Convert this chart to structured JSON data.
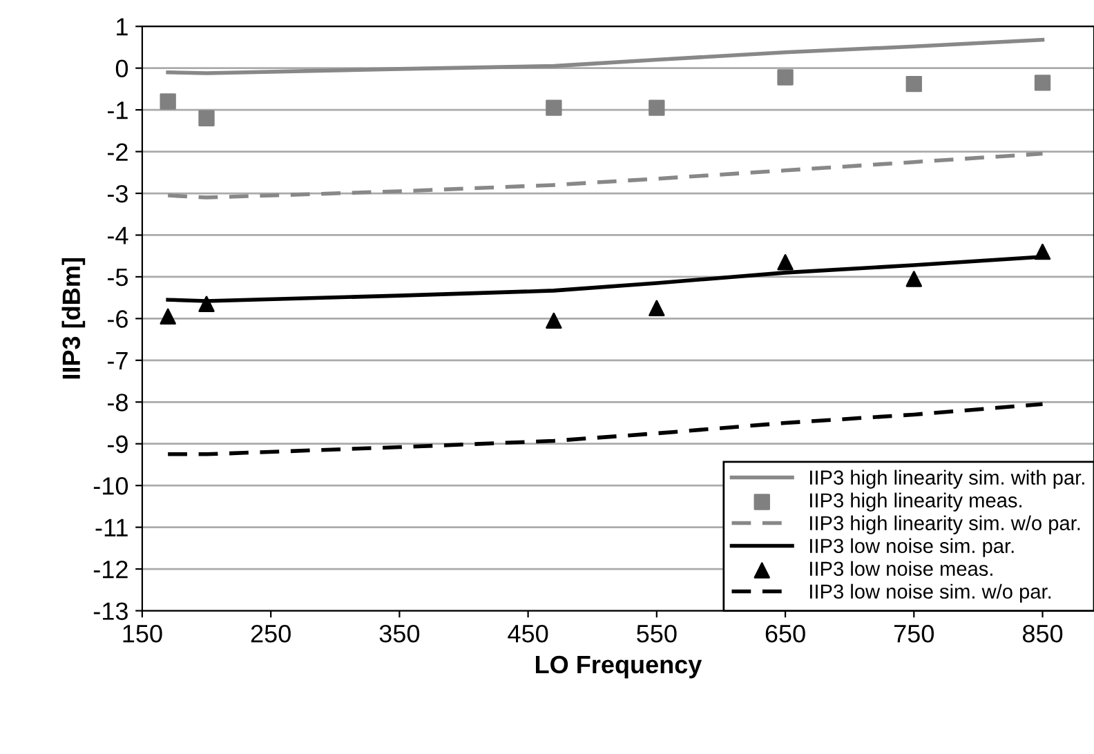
{
  "chart_data": {
    "type": "line",
    "xlabel": "LO Frequency",
    "ylabel": "IIP3 [dBm]",
    "xlim": [
      150,
      890
    ],
    "xticks": [
      150,
      250,
      350,
      450,
      550,
      650,
      750,
      850
    ],
    "ylim": [
      -13,
      1
    ],
    "yticks": [
      -13,
      -12,
      -11,
      -10,
      -9,
      -8,
      -7,
      -6,
      -5,
      -4,
      -3,
      -2,
      -1,
      0,
      1
    ],
    "grid": "y",
    "legend": "bottom right",
    "series": [
      {
        "name": "IIP3 high linearity sim. with par.",
        "color": "#888888",
        "line_style": "solid",
        "marker": "none",
        "x": [
          170,
          200,
          350,
          470,
          550,
          650,
          750,
          850
        ],
        "values": [
          -0.1,
          -0.12,
          -0.02,
          0.05,
          0.2,
          0.38,
          0.52,
          0.68
        ]
      },
      {
        "name": "IIP3 high linearity meas.",
        "type": "scatter",
        "color": "#808080",
        "marker": "square",
        "x": [
          170,
          200,
          470,
          550,
          650,
          750,
          850
        ],
        "values": [
          -0.8,
          -1.2,
          -0.95,
          -0.95,
          -0.22,
          -0.38,
          -0.35
        ]
      },
      {
        "name": "IIP3 high linearity sim. w/o par.",
        "color": "#888888",
        "line_style": "dashed",
        "marker": "none",
        "x": [
          170,
          200,
          350,
          470,
          550,
          650,
          750,
          850
        ],
        "values": [
          -3.05,
          -3.1,
          -2.95,
          -2.8,
          -2.65,
          -2.45,
          -2.25,
          -2.05
        ]
      },
      {
        "name": "IIP3 low noise sim. par.",
        "color": "#000000",
        "line_style": "solid",
        "marker": "none",
        "x": [
          170,
          200,
          350,
          470,
          550,
          650,
          750,
          850
        ],
        "values": [
          -5.55,
          -5.58,
          -5.45,
          -5.33,
          -5.15,
          -4.9,
          -4.72,
          -4.52
        ]
      },
      {
        "name": "IIP3 low noise meas.",
        "type": "scatter",
        "color": "#000000",
        "marker": "triangle",
        "x": [
          170,
          200,
          470,
          550,
          650,
          750,
          850
        ],
        "values": [
          -5.95,
          -5.65,
          -6.05,
          -5.75,
          -4.65,
          -5.05,
          -4.4
        ]
      },
      {
        "name": "IIP3 low noise sim. w/o par.",
        "color": "#000000",
        "line_style": "dashed",
        "marker": "none",
        "x": [
          170,
          200,
          350,
          470,
          550,
          650,
          750,
          850
        ],
        "values": [
          -9.25,
          -9.25,
          -9.08,
          -8.93,
          -8.75,
          -8.5,
          -8.3,
          -8.05
        ]
      }
    ]
  }
}
